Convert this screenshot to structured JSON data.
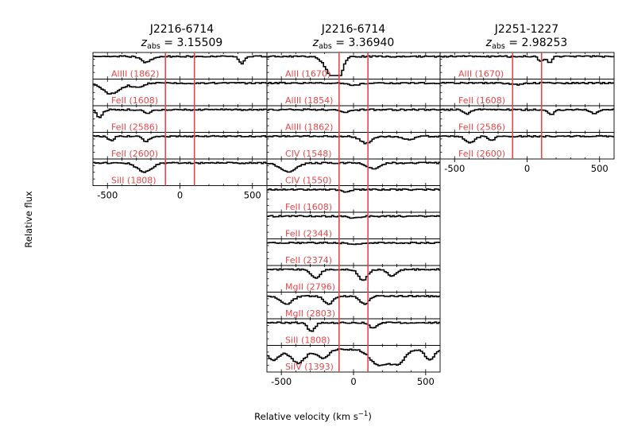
{
  "chart_data": {
    "type": "line",
    "xlabel": "Relative velocity (km s$^{-1}$)",
    "xlabel_main": "Relative velocity (km s",
    "xlabel_exp": "−1",
    "xlabel_close": ")",
    "ylabel": "Relative flux",
    "xlim": [
      -600,
      600
    ],
    "xticks": [
      -500,
      0,
      500
    ],
    "xtick_labels": [
      "-500",
      "0",
      "500"
    ],
    "colors": {
      "spectrum": "#000000",
      "marker": "#e8474a",
      "label": "#e8474a"
    },
    "panels": [
      {
        "name": "J2216-6714",
        "z_label": "z",
        "z_sub": "abs",
        "z_value": "= 3.15509",
        "marker_velocities": [
          -100,
          100
        ],
        "transitions": [
          "AlIII (1862)",
          "FeII (1608)",
          "FeII (2586)",
          "FeII (2600)",
          "SiII (1808)"
        ]
      },
      {
        "name": "J2216-6714",
        "z_label": "z",
        "z_sub": "abs",
        "z_value": "= 3.36940",
        "marker_velocities": [
          -100,
          100
        ],
        "transitions": [
          "AlII (1670)",
          "AlIII (1854)",
          "AlIII (1862)",
          "CIV (1548)",
          "CIV (1550)",
          "FeII (1608)",
          "FeII (2344)",
          "FeII (2374)",
          "MgII (2796)",
          "MgII (2803)",
          "SiII (1808)",
          "SiIV (1393)"
        ]
      },
      {
        "name": "J2251-1227",
        "z_label": "z",
        "z_sub": "abs",
        "z_value": "= 2.98253",
        "marker_velocities": [
          -100,
          100
        ],
        "transitions": [
          "AlII (1670)",
          "FeII (1608)",
          "FeII (2586)",
          "FeII (2600)"
        ]
      }
    ]
  }
}
